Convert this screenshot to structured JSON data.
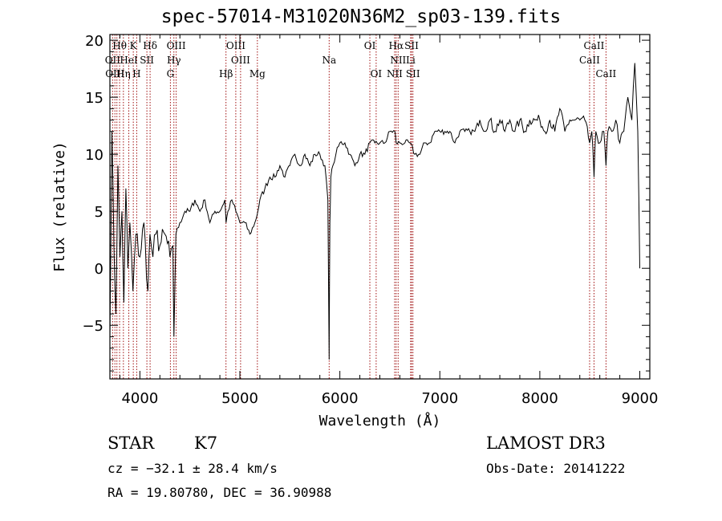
{
  "title": "spec-57014-M31020N36M2_sp03-139.fits",
  "footer": {
    "class": "STAR",
    "subclass": "K7",
    "survey": "LAMOST DR3",
    "cz": "cz = −32.1 ± 28.4 km/s",
    "obs_date": "Obs-Date: 20141222",
    "coords": "RA =  19.80780, DEC =  36.90988"
  },
  "chart_data": {
    "type": "line",
    "title": "spec-57014-M31020N36M2_sp03-139.fits",
    "xlabel": "Wavelength (Å)",
    "ylabel": "Flux (relative)",
    "xlim": [
      3700,
      9100
    ],
    "ylim": [
      -9.7,
      20.5
    ],
    "x_ticks": [
      4000,
      5000,
      6000,
      7000,
      8000,
      9000
    ],
    "x_tick_labels": [
      "4000",
      "5000",
      "6000",
      "7000",
      "8000",
      "9000"
    ],
    "y_ticks": [
      -5,
      0,
      5,
      10,
      15,
      20
    ],
    "y_tick_labels": [
      "−5",
      "0",
      "5",
      "10",
      "15",
      "20"
    ],
    "grid": false,
    "line_color": "#000000",
    "marker_color": "#a01010",
    "series": [
      {
        "name": "flux",
        "x": [
          3700,
          3720,
          3740,
          3760,
          3780,
          3800,
          3820,
          3840,
          3860,
          3880,
          3900,
          3930,
          3960,
          4000,
          4040,
          4080,
          4100,
          4130,
          4160,
          4200,
          4250,
          4300,
          4330,
          4340,
          4360,
          4400,
          4450,
          4500,
          4550,
          4600,
          4650,
          4700,
          4750,
          4800,
          4850,
          4862,
          4880,
          4920,
          4960,
          5000,
          5050,
          5100,
          5150,
          5180,
          5200,
          5250,
          5300,
          5350,
          5400,
          5450,
          5500,
          5550,
          5600,
          5650,
          5700,
          5750,
          5800,
          5850,
          5880,
          5893,
          5900,
          5910,
          5930,
          5960,
          6000,
          6050,
          6100,
          6150,
          6200,
          6250,
          6300,
          6350,
          6400,
          6450,
          6500,
          6550,
          6563,
          6600,
          6650,
          6700,
          6750,
          6800,
          6850,
          6900,
          6950,
          7000,
          7050,
          7100,
          7150,
          7200,
          7250,
          7300,
          7350,
          7400,
          7450,
          7500,
          7550,
          7600,
          7650,
          7700,
          7750,
          7800,
          7850,
          7900,
          7950,
          8000,
          8050,
          8100,
          8150,
          8200,
          8250,
          8300,
          8350,
          8400,
          8450,
          8498,
          8520,
          8542,
          8560,
          8600,
          8640,
          8662,
          8680,
          8720,
          8760,
          8800,
          8840,
          8880,
          8920,
          8950,
          8980,
          9000
        ],
        "y": [
          -6,
          12,
          2,
          -4,
          9,
          1,
          5,
          -3,
          7,
          0,
          4,
          -2,
          3,
          1,
          4,
          -2,
          3,
          1,
          3,
          2,
          3,
          1,
          2,
          -6,
          3,
          4,
          5,
          5,
          6,
          5,
          6,
          4,
          5,
          5,
          6,
          4,
          5,
          6,
          5,
          4,
          4,
          3,
          4,
          5,
          6,
          7,
          8,
          8,
          9,
          8,
          9,
          10,
          9,
          10,
          9,
          10,
          10,
          9,
          6,
          -8,
          4,
          8,
          9,
          10,
          11,
          11,
          10,
          9,
          10,
          10,
          11,
          11,
          11,
          11,
          12,
          12,
          11,
          11,
          11,
          11,
          10,
          10,
          11,
          11,
          12,
          12,
          12,
          12,
          11,
          12,
          12,
          12,
          12,
          13,
          12,
          13,
          12,
          13,
          12,
          13,
          12,
          13,
          12,
          13,
          13,
          13,
          12,
          13,
          12,
          14,
          12,
          13,
          13,
          13,
          13,
          11,
          12,
          8,
          12,
          11,
          12,
          9,
          12,
          12,
          13,
          11,
          12,
          15,
          13,
          18,
          12,
          0
        ]
      }
    ],
    "annotations": [
      {
        "label": "Hθ",
        "x": 3797,
        "row": 1
      },
      {
        "label": "K",
        "x": 3934,
        "row": 1
      },
      {
        "label": "Hδ",
        "x": 4102,
        "row": 1
      },
      {
        "label": "OIII",
        "x": 4363,
        "row": 1
      },
      {
        "label": "OIII",
        "x": 4959,
        "row": 1
      },
      {
        "label": "OI",
        "x": 6300,
        "row": 1
      },
      {
        "label": "Hα",
        "x": 6563,
        "row": 1
      },
      {
        "label": "SII",
        "x": 6717,
        "row": 1
      },
      {
        "label": "CaII",
        "x": 8542,
        "row": 1
      },
      {
        "label": "OII",
        "x": 3727,
        "row": 2
      },
      {
        "label": "HeI",
        "x": 3889,
        "row": 2
      },
      {
        "label": "SII",
        "x": 4070,
        "row": 2
      },
      {
        "label": "Hγ",
        "x": 4340,
        "row": 2
      },
      {
        "label": "OIII",
        "x": 5007,
        "row": 2
      },
      {
        "label": "Na",
        "x": 5893,
        "row": 2
      },
      {
        "label": "NII",
        "x": 6583,
        "row": 2
      },
      {
        "label": "Li",
        "x": 6708,
        "row": 2
      },
      {
        "label": "CaII",
        "x": 8498,
        "row": 2
      },
      {
        "label": "OIII",
        "x": 3750,
        "row": 3
      },
      {
        "label": "Hη",
        "x": 3835,
        "row": 3
      },
      {
        "label": "H",
        "x": 3968,
        "row": 3
      },
      {
        "label": "G",
        "x": 4305,
        "row": 3
      },
      {
        "label": "Hβ",
        "x": 4861,
        "row": 3
      },
      {
        "label": "Mg",
        "x": 5175,
        "row": 3
      },
      {
        "label": "OI",
        "x": 6363,
        "row": 3
      },
      {
        "label": "NII",
        "x": 6548,
        "row": 3
      },
      {
        "label": "SII",
        "x": 6731,
        "row": 3
      },
      {
        "label": "CaII",
        "x": 8662,
        "row": 3
      }
    ],
    "marker_lines": [
      3727,
      3750,
      3770,
      3797,
      3835,
      3889,
      3934,
      3968,
      4070,
      4102,
      4305,
      4340,
      4363,
      4861,
      4959,
      5007,
      5175,
      5893,
      6300,
      6363,
      6548,
      6563,
      6583,
      6708,
      6717,
      6731,
      8498,
      8542,
      8662
    ]
  }
}
